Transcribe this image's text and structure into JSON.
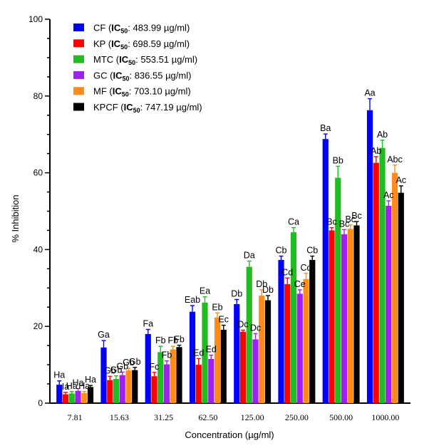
{
  "chart_data": {
    "type": "bar",
    "title": "",
    "xlabel": "Concentration (µg/ml)",
    "ylabel": "% Inhibition",
    "ylim": [
      0,
      100
    ],
    "yticks": [
      "0",
      "20",
      "40",
      "60",
      "80",
      "100"
    ],
    "grid": false,
    "legend_position": "top-left",
    "categories": [
      "7.81",
      "15.63",
      "31.25",
      "62.50",
      "125.00",
      "250.00",
      "500.00",
      "1000.00"
    ],
    "series": [
      {
        "name": "CF",
        "ic50_label": "IC",
        "ic50_sub": "50",
        "ic50_value": ": 483.99 µg/ml)",
        "color": "#0000FF",
        "values": [
          4.8,
          14.5,
          18.0,
          23.8,
          25.8,
          37.3,
          68.8,
          76.3
        ],
        "errors": [
          1.0,
          1.8,
          1.2,
          1.6,
          1.2,
          1.0,
          1.3,
          3.0
        ],
        "labels": [
          "Ha",
          "Ga",
          "Fa",
          "Eab",
          "Db",
          "Cb",
          "Ba",
          "Aa"
        ]
      },
      {
        "name": "KP",
        "ic50_label": "IC",
        "ic50_sub": "50",
        "ic50_value": ": 698.59 µg/ml)",
        "color": "#FF0000",
        "values": [
          2.3,
          6.0,
          7.0,
          10.0,
          18.6,
          31.0,
          45.0,
          62.6
        ],
        "errors": [
          0.5,
          1.0,
          1.0,
          1.6,
          0.4,
          1.6,
          0.7,
          1.6
        ],
        "labels": [
          "Ia",
          "Gb",
          "Fc",
          "Ed",
          "Dc",
          "Cd",
          "Bc",
          "Ab"
        ]
      },
      {
        "name": "MTC",
        "ic50_label": "IC",
        "ic50_sub": "50",
        "ic50_value": ": 553.51 µg/ml)",
        "color": "#22BB22",
        "values": [
          2.5,
          6.3,
          13.3,
          26.2,
          35.5,
          44.5,
          58.7,
          66.5
        ],
        "errors": [
          0.5,
          0.8,
          1.5,
          1.5,
          1.5,
          1.2,
          3.0,
          2.0
        ],
        "labels": [
          "Ha",
          "Gb",
          "Fb",
          "Ea",
          "Da",
          "Ca",
          "Bb",
          "Ab"
        ]
      },
      {
        "name": "GC",
        "ic50_label": "IC",
        "ic50_sub": "50",
        "ic50_value": ": 836.55 µg/ml)",
        "color": "#A020F0",
        "values": [
          3.2,
          7.3,
          10.1,
          11.5,
          16.6,
          28.5,
          44.0,
          51.4
        ],
        "errors": [
          0.6,
          0.8,
          0.9,
          1.0,
          1.5,
          1.0,
          1.2,
          1.3
        ],
        "labels": [
          "Ha",
          "Gb",
          "Fb",
          "Ed",
          "Dc",
          "Ce",
          "Bc",
          "Ac"
        ]
      },
      {
        "name": "MF",
        "ic50_label": "IC",
        "ic50_sub": "50",
        "ic50_value": ": 703.10 µg/ml)",
        "color": "#FF8C1A",
        "values": [
          2.6,
          8.5,
          14.0,
          22.3,
          28.0,
          32.3,
          45.4,
          60.0
        ],
        "errors": [
          0.4,
          0.6,
          0.8,
          1.2,
          1.5,
          1.5,
          1.0,
          2.0
        ],
        "labels": [
          "Ha",
          "Gb",
          "Fb",
          "Eb",
          "Db",
          "Cd",
          "Bc",
          "Abc"
        ]
      },
      {
        "name": "KPCF",
        "ic50_label": "IC",
        "ic50_sub": "50",
        "ic50_value": ": 747.19 µg/ml)",
        "color": "#000000",
        "values": [
          4.2,
          8.6,
          14.6,
          19.1,
          26.8,
          37.3,
          46.3,
          54.8
        ],
        "errors": [
          0.4,
          0.7,
          0.5,
          1.2,
          1.2,
          1.0,
          1.0,
          1.8
        ],
        "labels": [
          "Ha",
          "Gb",
          "Fb",
          "Ec",
          "Db",
          "Cb",
          "Bc",
          "Ac"
        ]
      }
    ]
  }
}
